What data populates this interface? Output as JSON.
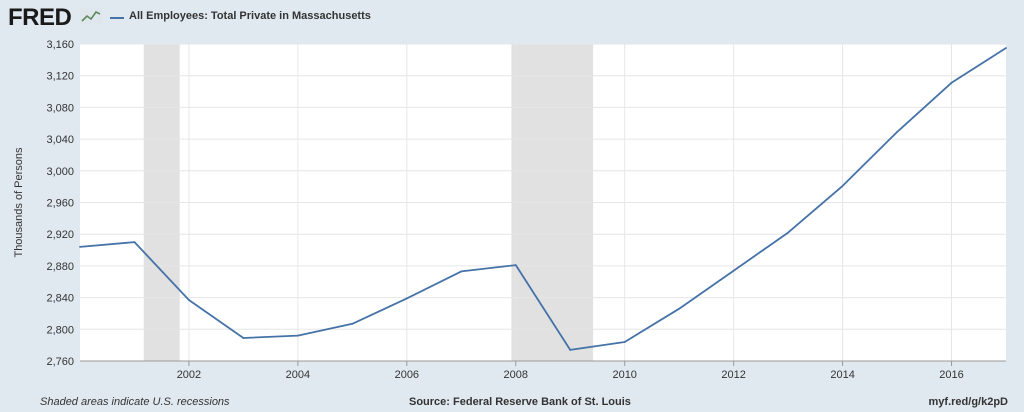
{
  "header": {
    "logo_text": "FRED",
    "legend_label": "All Employees: Total Private in Massachusetts"
  },
  "footer": {
    "recessions_note": "Shaded areas indicate U.S. recessions",
    "source": "Source: Federal Reserve Bank of St. Louis",
    "short_url": "myf.red/g/k2pD"
  },
  "colors": {
    "line": "#4572a7",
    "plot_background": "#ffffff",
    "page_background": "#e1e9f0",
    "recession_shade": "#e1e1e1",
    "grid": "#e6e6e6"
  },
  "chart_data": {
    "type": "line",
    "title": "All Employees: Total Private in Massachusetts",
    "ylabel": "Thousands of Persons",
    "xlabel": "",
    "xlim": [
      2000,
      2017
    ],
    "ylim": [
      2760,
      3160
    ],
    "yticks": [
      2760,
      2800,
      2840,
      2880,
      2920,
      2960,
      3000,
      3040,
      3080,
      3120,
      3160
    ],
    "ytick_labels": [
      "2,760",
      "2,800",
      "2,840",
      "2,880",
      "2,920",
      "2,960",
      "3,000",
      "3,040",
      "3,080",
      "3,120",
      "3,160"
    ],
    "xticks": [
      2002,
      2004,
      2006,
      2008,
      2010,
      2012,
      2014,
      2016
    ],
    "xtick_labels": [
      "2002",
      "2004",
      "2006",
      "2008",
      "2010",
      "2012",
      "2014",
      "2016"
    ],
    "grid": true,
    "recessions": [
      {
        "start": 2001.17,
        "end": 2001.83
      },
      {
        "start": 2007.92,
        "end": 2009.42
      }
    ],
    "series": [
      {
        "name": "All Employees: Total Private in Massachusetts",
        "x": [
          2000,
          2001,
          2002,
          2003,
          2004,
          2005,
          2006,
          2007,
          2008,
          2009,
          2010,
          2011,
          2012,
          2013,
          2014,
          2015,
          2016,
          2017
        ],
        "y": [
          2904,
          2910,
          2837,
          2789,
          2792,
          2807,
          2839,
          2873,
          2881,
          2774,
          2784,
          2826,
          2874,
          2922,
          2981,
          3049,
          3111,
          3155
        ]
      }
    ]
  }
}
